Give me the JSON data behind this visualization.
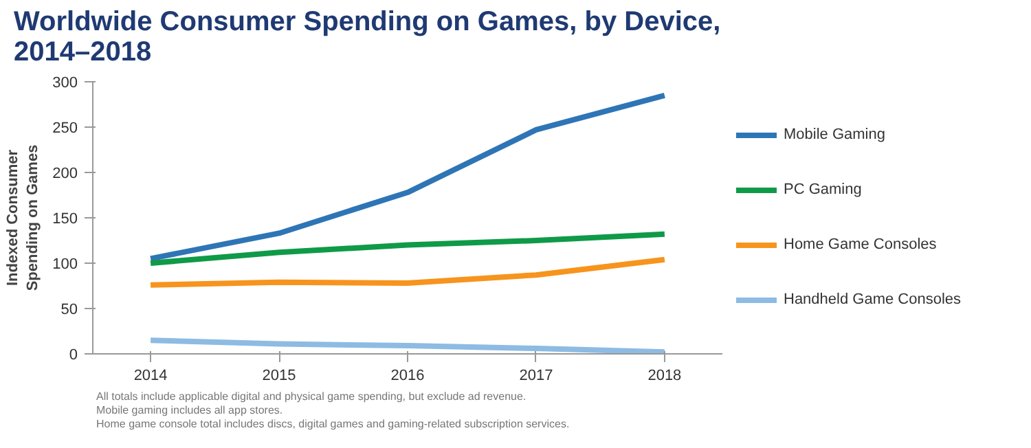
{
  "chart_data": {
    "type": "line",
    "title": "Worldwide Consumer Spending on Games, by Device, 2014–2018",
    "ylabel": "Indexed Consumer Spending on Games",
    "x": [
      2014,
      2015,
      2016,
      2017,
      2018
    ],
    "xlim": [
      2013.55,
      2018.45
    ],
    "xticks": [
      2014,
      2015,
      2016,
      2017,
      2018
    ],
    "ylim": [
      0,
      300
    ],
    "yticks": [
      0,
      50,
      100,
      150,
      200,
      250,
      300
    ],
    "grid": false,
    "legend": "right",
    "marker": "none",
    "line_style": "solid",
    "series": [
      {
        "name": "Mobile Gaming",
        "color": "#2e75b6",
        "values": [
          105,
          133,
          178,
          247,
          285
        ]
      },
      {
        "name": "PC Gaming",
        "color": "#0f9a48",
        "values": [
          100,
          112,
          120,
          125,
          132
        ]
      },
      {
        "name": "Home Game Consoles",
        "color": "#f7941d",
        "values": [
          76,
          79,
          78,
          87,
          104
        ]
      },
      {
        "name": "Handheld Game Consoles",
        "color": "#8dbbe3",
        "values": [
          15,
          11,
          9,
          6,
          2
        ]
      }
    ],
    "annotations": [
      "All totals include applicable digital and physical game spending, but exclude ad revenue.",
      "Mobile gaming includes all app stores.",
      "Home game console total includes discs, digital games and gaming-related subscription services."
    ]
  }
}
